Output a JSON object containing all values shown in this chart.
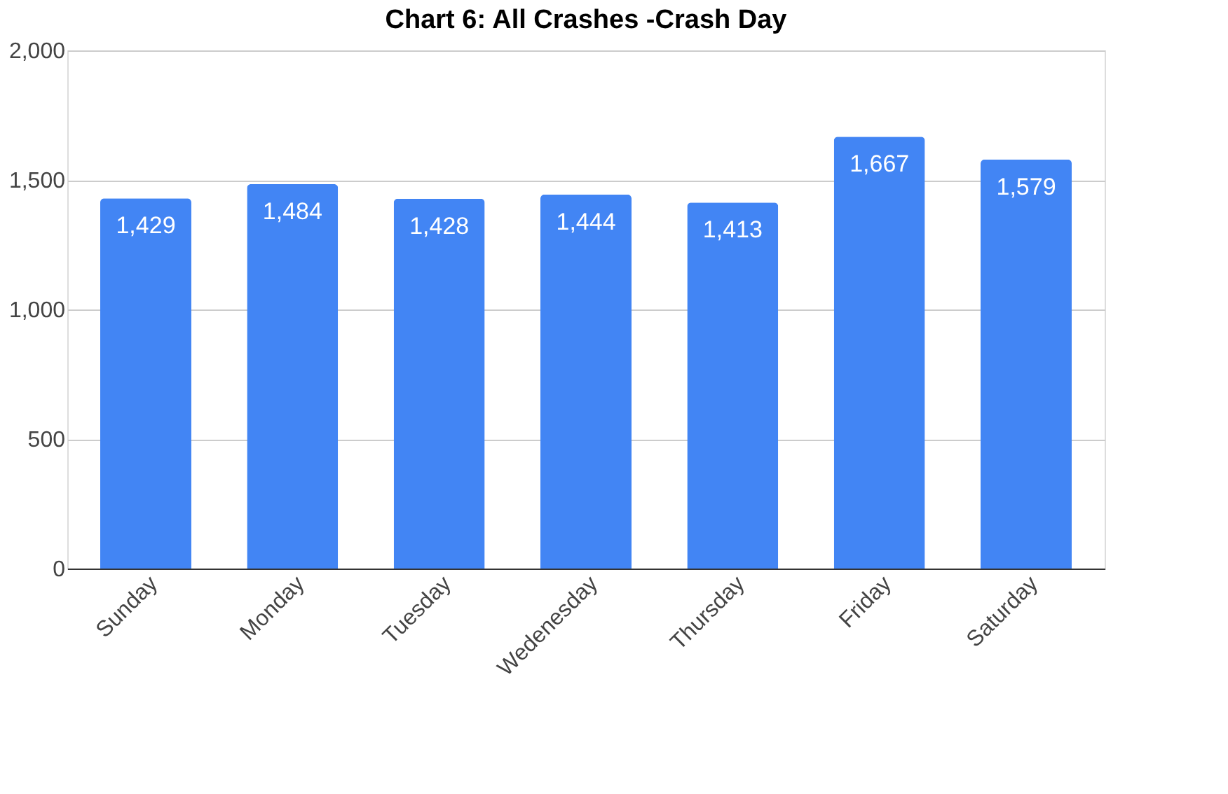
{
  "chart_data": {
    "type": "bar",
    "title": "Chart 6: All Crashes -Crash Day",
    "categories": [
      "Sunday",
      "Monday",
      "Tuesday",
      "Wedenesday",
      "Thursday",
      "Friday",
      "Saturday"
    ],
    "values": [
      1429,
      1484,
      1428,
      1444,
      1413,
      1667,
      1579
    ],
    "value_labels": [
      "1,429",
      "1,484",
      "1,428",
      "1,444",
      "1,413",
      "1,667",
      "1,579"
    ],
    "color": "#4285f4",
    "ylim": [
      0,
      2000
    ],
    "yticks": [
      0,
      {
        "value": 500,
        "label": "500"
      },
      {
        "value": 1000,
        "label": "1,000"
      },
      {
        "value": 1500,
        "label": "1,500"
      },
      {
        "value": 2000,
        "label": "2,000"
      }
    ],
    "grid": "y"
  }
}
